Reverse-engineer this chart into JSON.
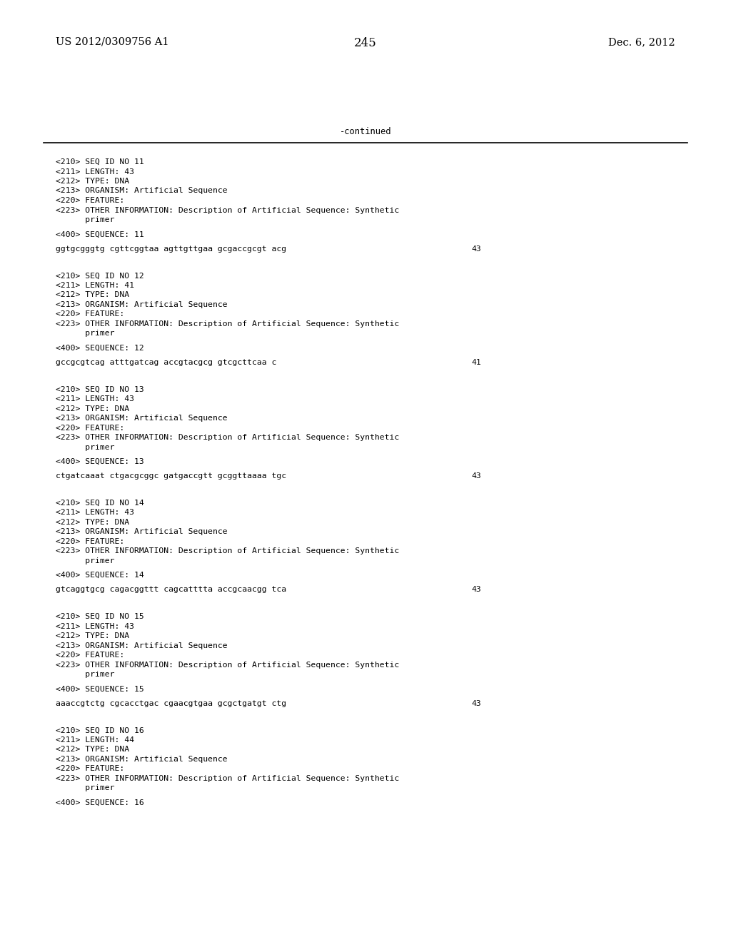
{
  "background_color": "#ffffff",
  "header_left": "US 2012/0309756 A1",
  "header_right": "Dec. 6, 2012",
  "page_number": "245",
  "continued_label": "-continued",
  "mono_size": 8.2,
  "header_size": 10.5,
  "pagenum_size": 12,
  "sections": [
    {
      "meta": [
        "<210> SEQ ID NO 11",
        "<211> LENGTH: 43",
        "<212> TYPE: DNA",
        "<213> ORGANISM: Artificial Sequence",
        "<220> FEATURE:",
        "<223> OTHER INFORMATION: Description of Artificial Sequence: Synthetic",
        "      primer"
      ],
      "seq_label": "<400> SEQUENCE: 11",
      "seq_data": "ggtgcgggtg cgttcggtaa agttgttgaa gcgaccgcgt acg",
      "seq_num": "43"
    },
    {
      "meta": [
        "<210> SEQ ID NO 12",
        "<211> LENGTH: 41",
        "<212> TYPE: DNA",
        "<213> ORGANISM: Artificial Sequence",
        "<220> FEATURE:",
        "<223> OTHER INFORMATION: Description of Artificial Sequence: Synthetic",
        "      primer"
      ],
      "seq_label": "<400> SEQUENCE: 12",
      "seq_data": "gccgcgtcag atttgatcag accgtacgcg gtcgcttcaa c",
      "seq_num": "41"
    },
    {
      "meta": [
        "<210> SEQ ID NO 13",
        "<211> LENGTH: 43",
        "<212> TYPE: DNA",
        "<213> ORGANISM: Artificial Sequence",
        "<220> FEATURE:",
        "<223> OTHER INFORMATION: Description of Artificial Sequence: Synthetic",
        "      primer"
      ],
      "seq_label": "<400> SEQUENCE: 13",
      "seq_data": "ctgatcaaat ctgacgcggc gatgaccgtt gcggttaaaa tgc",
      "seq_num": "43"
    },
    {
      "meta": [
        "<210> SEQ ID NO 14",
        "<211> LENGTH: 43",
        "<212> TYPE: DNA",
        "<213> ORGANISM: Artificial Sequence",
        "<220> FEATURE:",
        "<223> OTHER INFORMATION: Description of Artificial Sequence: Synthetic",
        "      primer"
      ],
      "seq_label": "<400> SEQUENCE: 14",
      "seq_data": "gtcaggtgcg cagacggttt cagcatttta accgcaacgg tca",
      "seq_num": "43"
    },
    {
      "meta": [
        "<210> SEQ ID NO 15",
        "<211> LENGTH: 43",
        "<212> TYPE: DNA",
        "<213> ORGANISM: Artificial Sequence",
        "<220> FEATURE:",
        "<223> OTHER INFORMATION: Description of Artificial Sequence: Synthetic",
        "      primer"
      ],
      "seq_label": "<400> SEQUENCE: 15",
      "seq_data": "aaaccgtctg cgcacctgac cgaacgtgaa gcgctgatgt ctg",
      "seq_num": "43"
    },
    {
      "meta": [
        "<210> SEQ ID NO 16",
        "<211> LENGTH: 44",
        "<212> TYPE: DNA",
        "<213> ORGANISM: Artificial Sequence",
        "<220> FEATURE:",
        "<223> OTHER INFORMATION: Description of Artificial Sequence: Synthetic",
        "      primer"
      ],
      "seq_label": "<400> SEQUENCE: 16",
      "seq_data": null,
      "seq_num": null
    }
  ]
}
